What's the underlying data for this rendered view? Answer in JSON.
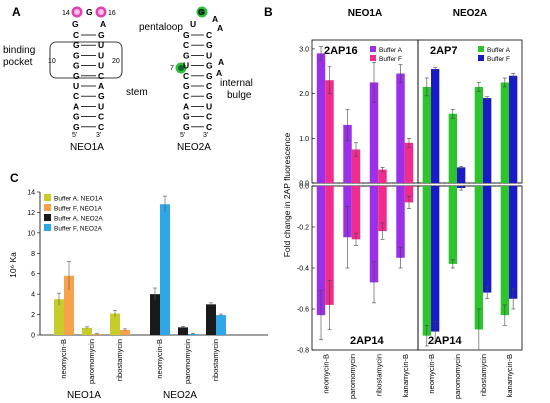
{
  "panels": {
    "a_letter": "A",
    "b_letter": "B",
    "c_letter": "C"
  },
  "panel_a": {
    "neo1a": {
      "name": "NEO1A",
      "loop": [
        "G",
        "G"
      ],
      "pos14": "14",
      "pos16": "16",
      "pos10": "10",
      "pos20": "20",
      "prime5": "5'",
      "prime3": "3'",
      "pairs": [
        [
          "C",
          "G"
        ],
        [
          "G",
          "U"
        ],
        [
          "G",
          "U"
        ],
        [
          "G",
          "U"
        ],
        [
          "G",
          "C"
        ],
        [
          "U",
          "A"
        ],
        [
          "C",
          "G"
        ],
        [
          "A",
          "U"
        ],
        [
          "G",
          "C"
        ],
        [
          "G",
          "C"
        ]
      ],
      "left_bulge": "A",
      "binding_pocket_label": [
        "binding",
        "pocket"
      ],
      "stem_label": "stem"
    },
    "neo2a": {
      "name": "NEO2A",
      "loop": [
        "G",
        "U",
        "A",
        "A"
      ],
      "pos7": "7",
      "prime5": "5'",
      "prime3": "3'",
      "pairs": [
        [
          "G",
          "C"
        ],
        [
          "C",
          "G"
        ],
        [
          "G",
          "U"
        ],
        [
          "U",
          "G"
        ],
        [
          "C",
          "G"
        ],
        [
          "G",
          "C"
        ],
        [
          "C",
          "G"
        ],
        [
          "A",
          "U"
        ],
        [
          "G",
          "C"
        ],
        [
          "G",
          "C"
        ]
      ],
      "bulge_right": [
        "A",
        "A"
      ],
      "pentaloop_label": "pentaloop",
      "internal_bulge_label": [
        "internal",
        "bulge"
      ]
    }
  },
  "chart_data": [
    {
      "type": "bar",
      "panel": "C",
      "categories_neo1a": [
        "neomycin-B",
        "paromomycin",
        "ribostamycin"
      ],
      "categories_neo2a": [
        "neomycin-B",
        "paromomycin",
        "ribostamycin"
      ],
      "group_labels": [
        "NEO1A",
        "NEO2A"
      ],
      "ylabel": "10⁶ Ka",
      "ylim": [
        0,
        14
      ],
      "yticks": [
        0,
        2,
        4,
        6,
        8,
        10,
        12,
        14
      ],
      "series": [
        {
          "name": "Buffer A, NEO1A",
          "color": "#c8cc2a",
          "values": [
            3.5,
            0.7,
            2.1
          ],
          "errors": [
            0.6,
            0.1,
            0.3
          ],
          "group": 0
        },
        {
          "name": "Buffer F, NEO1A",
          "color": "#f7a24a",
          "values": [
            5.8,
            0.1,
            0.5
          ],
          "errors": [
            1.4,
            0.05,
            0.1
          ],
          "group": 0
        },
        {
          "name": "Buffer A, NEO2A",
          "color": "#1a1a1a",
          "values": [
            4.0,
            0.75,
            3.0
          ],
          "errors": [
            0.6,
            0.1,
            0.15
          ],
          "group": 1
        },
        {
          "name": "Buffer F, NEO2A",
          "color": "#2ea7e8",
          "values": [
            12.8,
            0.1,
            1.95
          ],
          "errors": [
            0.8,
            0.05,
            0.1
          ],
          "group": 1
        }
      ]
    },
    {
      "type": "bar",
      "panel": "B-NEO1A",
      "title": "NEO1A",
      "top_label": "2AP16",
      "bottom_label": "2AP14",
      "categories": [
        "neomycin-B",
        "paromomycin",
        "ribostamycin",
        "kanamycin-B"
      ],
      "ylabel": "Fold change in 2AP fluorescence",
      "top_ylim": [
        0,
        3.2
      ],
      "top_yticks": [
        0.0,
        1.0,
        2.0,
        3.0
      ],
      "bottom_ylim": [
        -0.8,
        0.0
      ],
      "bottom_yticks": [
        0.0,
        -0.2,
        -0.4,
        -0.6,
        -0.8
      ],
      "series_top": [
        {
          "name": "Buffer A",
          "color": "#9b30e8",
          "values": [
            2.9,
            1.3,
            2.25,
            2.45
          ],
          "errors": [
            0.15,
            0.35,
            0.45,
            0.2
          ]
        },
        {
          "name": "Buffer F",
          "color": "#f02d8c",
          "values": [
            2.3,
            0.75,
            0.3,
            0.9
          ],
          "errors": [
            0.3,
            0.15,
            0.05,
            0.1
          ]
        }
      ],
      "series_bottom": [
        {
          "name": "Buffer A",
          "color": "#9b30e8",
          "values": [
            -0.63,
            -0.25,
            -0.47,
            -0.35
          ],
          "errors": [
            0.12,
            0.15,
            0.1,
            0.05
          ]
        },
        {
          "name": "Buffer F",
          "color": "#f02d8c",
          "values": [
            -0.58,
            -0.26,
            -0.22,
            -0.08
          ],
          "errors": [
            0.12,
            0.03,
            0.04,
            0.03
          ]
        }
      ]
    },
    {
      "type": "bar",
      "panel": "B-NEO2A",
      "title": "NEO2A",
      "top_label": "2AP7",
      "bottom_label": "2AP14",
      "categories": [
        "neomycin-B",
        "paromomycin",
        "ribostamycin",
        "kanamycin-B"
      ],
      "top_ylim": [
        0,
        3.2
      ],
      "bottom_ylim": [
        -0.8,
        0.0
      ],
      "series_top": [
        {
          "name": "Buffer A",
          "color": "#2ec42e",
          "values": [
            2.15,
            1.55,
            2.15,
            2.25
          ],
          "errors": [
            0.2,
            0.1,
            0.1,
            0.1
          ]
        },
        {
          "name": "Buffer F",
          "color": "#1a1ac8",
          "values": [
            2.55,
            0.35,
            1.9,
            2.4
          ],
          "errors": [
            0.03,
            0.02,
            0.03,
            0.05
          ]
        }
      ],
      "series_bottom": [
        {
          "name": "Buffer A",
          "color": "#2ec42e",
          "values": [
            -0.73,
            -0.38,
            -0.7,
            -0.63
          ],
          "errors": [
            0.05,
            0.02,
            0.1,
            0.05
          ]
        },
        {
          "name": "Buffer F",
          "color": "#1a1ac8",
          "values": [
            -0.71,
            -0.01,
            -0.52,
            -0.55
          ],
          "errors": [
            0.05,
            0.01,
            0.03,
            0.05
          ]
        }
      ]
    }
  ]
}
